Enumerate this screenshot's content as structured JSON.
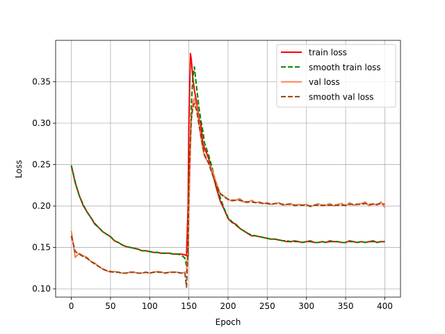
{
  "chart_data": {
    "type": "line",
    "title": "",
    "xlabel": "Epoch",
    "ylabel": "Loss",
    "xlim": [
      -20,
      420
    ],
    "ylim": [
      0.09,
      0.4
    ],
    "xticks": [
      0,
      50,
      100,
      150,
      200,
      250,
      300,
      350,
      400
    ],
    "yticks": [
      0.1,
      0.15,
      0.2,
      0.25,
      0.3,
      0.35
    ],
    "xtick_labels": [
      "0",
      "50",
      "100",
      "150",
      "200",
      "250",
      "300",
      "350",
      "400"
    ],
    "ytick_labels": [
      "0.10",
      "0.15",
      "0.20",
      "0.25",
      "0.30",
      "0.35"
    ],
    "grid": true,
    "legend_position": "top-right",
    "series": [
      {
        "name": "train loss",
        "color": "#ff0000",
        "style": "solid",
        "x": [
          0,
          5,
          10,
          15,
          20,
          25,
          30,
          35,
          40,
          45,
          50,
          55,
          60,
          65,
          70,
          75,
          80,
          85,
          90,
          95,
          100,
          105,
          110,
          115,
          120,
          125,
          130,
          135,
          140,
          145,
          147,
          149,
          150,
          152,
          153,
          155,
          157,
          160,
          163,
          165,
          168,
          170,
          175,
          180,
          185,
          190,
          195,
          200,
          205,
          210,
          215,
          220,
          225,
          230,
          235,
          240,
          245,
          250,
          255,
          260,
          265,
          270,
          275,
          280,
          285,
          290,
          295,
          300,
          305,
          310,
          315,
          320,
          325,
          330,
          335,
          340,
          345,
          350,
          355,
          360,
          365,
          370,
          375,
          380,
          385,
          390,
          395,
          400
        ],
        "y": [
          0.249,
          0.228,
          0.213,
          0.201,
          0.193,
          0.186,
          0.178,
          0.174,
          0.169,
          0.166,
          0.163,
          0.158,
          0.156,
          0.153,
          0.151,
          0.15,
          0.149,
          0.148,
          0.146,
          0.146,
          0.145,
          0.144,
          0.144,
          0.143,
          0.143,
          0.143,
          0.142,
          0.142,
          0.142,
          0.141,
          0.14,
          0.2,
          0.3,
          0.384,
          0.378,
          0.355,
          0.34,
          0.325,
          0.305,
          0.3,
          0.275,
          0.27,
          0.258,
          0.24,
          0.222,
          0.206,
          0.196,
          0.185,
          0.18,
          0.178,
          0.173,
          0.17,
          0.167,
          0.164,
          0.164,
          0.163,
          0.162,
          0.161,
          0.16,
          0.16,
          0.159,
          0.158,
          0.157,
          0.157,
          0.158,
          0.157,
          0.156,
          0.157,
          0.158,
          0.156,
          0.156,
          0.157,
          0.156,
          0.158,
          0.157,
          0.157,
          0.156,
          0.156,
          0.158,
          0.157,
          0.156,
          0.157,
          0.156,
          0.157,
          0.158,
          0.156,
          0.157,
          0.157
        ]
      },
      {
        "name": "smooth train loss",
        "color": "#008000",
        "style": "dashed",
        "x": [
          0,
          5,
          10,
          15,
          20,
          25,
          30,
          35,
          40,
          45,
          50,
          55,
          60,
          65,
          70,
          75,
          80,
          85,
          90,
          95,
          100,
          105,
          110,
          115,
          120,
          125,
          130,
          135,
          140,
          145,
          147,
          149,
          150,
          152,
          153,
          155,
          157,
          160,
          163,
          165,
          168,
          170,
          175,
          180,
          185,
          190,
          195,
          200,
          205,
          210,
          215,
          220,
          225,
          230,
          235,
          240,
          245,
          250,
          255,
          260,
          265,
          270,
          275,
          280,
          285,
          290,
          295,
          300,
          305,
          310,
          315,
          320,
          325,
          330,
          335,
          340,
          345,
          350,
          355,
          360,
          365,
          370,
          375,
          380,
          385,
          390,
          395,
          400
        ],
        "y": [
          0.249,
          0.229,
          0.213,
          0.202,
          0.193,
          0.186,
          0.179,
          0.174,
          0.169,
          0.166,
          0.163,
          0.158,
          0.156,
          0.153,
          0.151,
          0.15,
          0.149,
          0.148,
          0.146,
          0.146,
          0.145,
          0.144,
          0.144,
          0.143,
          0.143,
          0.143,
          0.142,
          0.142,
          0.141,
          0.137,
          0.128,
          0.14,
          0.2,
          0.28,
          0.32,
          0.355,
          0.368,
          0.342,
          0.318,
          0.305,
          0.29,
          0.276,
          0.262,
          0.245,
          0.226,
          0.21,
          0.197,
          0.186,
          0.181,
          0.177,
          0.173,
          0.17,
          0.167,
          0.165,
          0.164,
          0.163,
          0.162,
          0.161,
          0.16,
          0.16,
          0.159,
          0.158,
          0.158,
          0.157,
          0.157,
          0.157,
          0.156,
          0.157,
          0.157,
          0.156,
          0.156,
          0.157,
          0.156,
          0.157,
          0.157,
          0.157,
          0.156,
          0.156,
          0.157,
          0.157,
          0.156,
          0.157,
          0.156,
          0.157,
          0.157,
          0.156,
          0.157,
          0.157
        ]
      },
      {
        "name": "val loss",
        "color": "#ff7f50",
        "style": "solid",
        "x": [
          0,
          5,
          10,
          15,
          20,
          25,
          30,
          35,
          40,
          45,
          50,
          55,
          60,
          65,
          70,
          75,
          80,
          85,
          90,
          95,
          100,
          105,
          110,
          115,
          120,
          125,
          130,
          135,
          140,
          145,
          147,
          149,
          150,
          152,
          153,
          155,
          157,
          160,
          163,
          165,
          168,
          170,
          175,
          180,
          185,
          190,
          195,
          200,
          205,
          210,
          215,
          220,
          225,
          230,
          235,
          240,
          245,
          250,
          255,
          260,
          265,
          270,
          275,
          280,
          285,
          290,
          295,
          300,
          305,
          310,
          315,
          320,
          325,
          330,
          335,
          340,
          345,
          350,
          355,
          360,
          365,
          370,
          375,
          380,
          385,
          390,
          395,
          400
        ],
        "y": [
          0.17,
          0.138,
          0.143,
          0.14,
          0.138,
          0.133,
          0.131,
          0.127,
          0.124,
          0.122,
          0.12,
          0.121,
          0.12,
          0.119,
          0.119,
          0.12,
          0.12,
          0.119,
          0.119,
          0.12,
          0.119,
          0.12,
          0.121,
          0.12,
          0.119,
          0.12,
          0.12,
          0.12,
          0.119,
          0.12,
          0.121,
          0.15,
          0.2,
          0.27,
          0.3,
          0.325,
          0.33,
          0.32,
          0.3,
          0.285,
          0.268,
          0.26,
          0.252,
          0.243,
          0.228,
          0.215,
          0.212,
          0.208,
          0.206,
          0.207,
          0.209,
          0.205,
          0.204,
          0.207,
          0.204,
          0.205,
          0.203,
          0.204,
          0.202,
          0.203,
          0.204,
          0.201,
          0.202,
          0.203,
          0.2,
          0.202,
          0.201,
          0.202,
          0.199,
          0.201,
          0.203,
          0.2,
          0.201,
          0.203,
          0.2,
          0.202,
          0.203,
          0.2,
          0.204,
          0.201,
          0.202,
          0.203,
          0.205,
          0.2,
          0.203,
          0.201,
          0.205,
          0.198
        ]
      },
      {
        "name": "smooth val loss",
        "color": "#8b4513",
        "style": "dashed",
        "x": [
          0,
          5,
          10,
          15,
          20,
          25,
          30,
          35,
          40,
          45,
          50,
          55,
          60,
          65,
          70,
          75,
          80,
          85,
          90,
          95,
          100,
          105,
          110,
          115,
          120,
          125,
          130,
          135,
          140,
          145,
          147,
          149,
          150,
          152,
          153,
          155,
          157,
          160,
          163,
          165,
          168,
          170,
          175,
          180,
          185,
          190,
          195,
          200,
          205,
          210,
          215,
          220,
          225,
          230,
          235,
          240,
          245,
          250,
          255,
          260,
          265,
          270,
          275,
          280,
          285,
          290,
          295,
          300,
          305,
          310,
          315,
          320,
          325,
          330,
          335,
          340,
          345,
          350,
          355,
          360,
          365,
          370,
          375,
          380,
          385,
          390,
          395,
          400
        ],
        "y": [
          0.164,
          0.145,
          0.142,
          0.139,
          0.137,
          0.133,
          0.13,
          0.127,
          0.124,
          0.122,
          0.121,
          0.12,
          0.12,
          0.119,
          0.119,
          0.12,
          0.12,
          0.119,
          0.119,
          0.12,
          0.119,
          0.12,
          0.12,
          0.12,
          0.119,
          0.12,
          0.12,
          0.12,
          0.119,
          0.119,
          0.102,
          0.15,
          0.23,
          0.282,
          0.305,
          0.318,
          0.324,
          0.315,
          0.297,
          0.287,
          0.271,
          0.262,
          0.252,
          0.238,
          0.225,
          0.215,
          0.211,
          0.208,
          0.207,
          0.207,
          0.207,
          0.205,
          0.205,
          0.205,
          0.204,
          0.204,
          0.203,
          0.203,
          0.202,
          0.203,
          0.203,
          0.202,
          0.202,
          0.202,
          0.201,
          0.201,
          0.201,
          0.201,
          0.2,
          0.201,
          0.201,
          0.201,
          0.201,
          0.201,
          0.201,
          0.201,
          0.201,
          0.201,
          0.202,
          0.202,
          0.202,
          0.202,
          0.203,
          0.202,
          0.202,
          0.202,
          0.203,
          0.202
        ]
      }
    ]
  }
}
